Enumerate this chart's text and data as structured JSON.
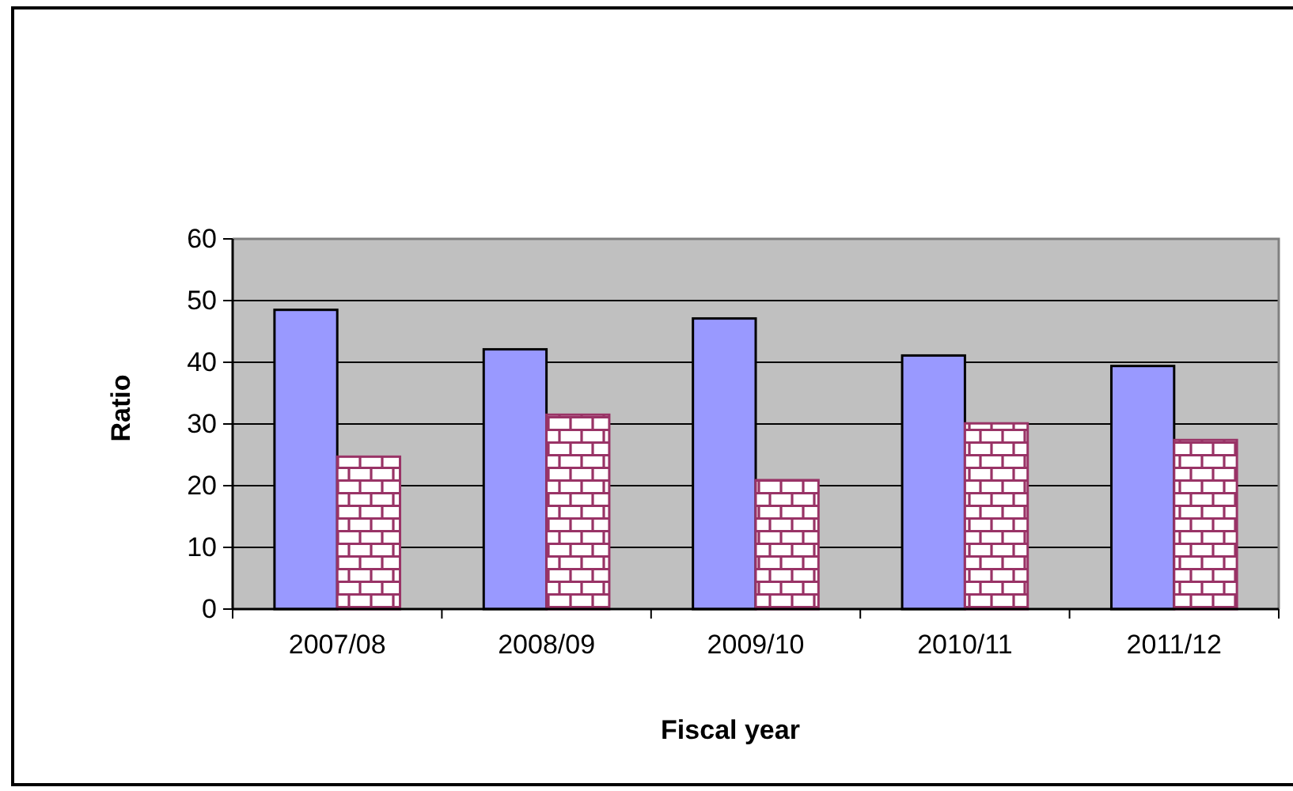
{
  "chart_data": {
    "type": "bar",
    "xlabel": "Fiscal year",
    "ylabel": "Ratio",
    "categories": [
      "2007/08",
      "2008/09",
      "2009/10",
      "2010/11",
      "2011/12"
    ],
    "series": [
      {
        "color": "#9999ff",
        "values": [
          48.5,
          42.1,
          47.1,
          41.1,
          39.4
        ]
      },
      {
        "color": "#993366",
        "values": [
          24.7,
          31.5,
          20.9,
          30.1,
          27.4
        ]
      }
    ],
    "ylim": [
      0,
      60
    ],
    "yticks": [
      0,
      10,
      20,
      30,
      40,
      50,
      60
    ],
    "grid": "y"
  }
}
